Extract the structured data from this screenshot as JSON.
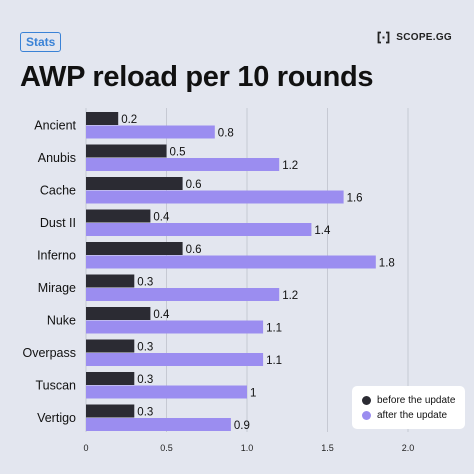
{
  "header": {
    "badge": "Stats",
    "brand": "SCOPE.GG",
    "brand_icon": "scope-logo-icon"
  },
  "chart_data": {
    "type": "bar",
    "orientation": "horizontal",
    "title": "AWP reload per 10 rounds",
    "categories": [
      "Ancient",
      "Anubis",
      "Cache",
      "Dust II",
      "Inferno",
      "Mirage",
      "Nuke",
      "Overpass",
      "Tuscan",
      "Vertigo"
    ],
    "series": [
      {
        "name": "before the update",
        "color": "#2b2b33",
        "values": [
          0.2,
          0.5,
          0.6,
          0.4,
          0.6,
          0.3,
          0.4,
          0.3,
          0.3,
          0.3
        ]
      },
      {
        "name": "after the update",
        "color": "#9b8df0",
        "values": [
          0.8,
          1.2,
          1.6,
          1.4,
          1.8,
          1.2,
          1.1,
          1.1,
          1,
          0.9
        ]
      }
    ],
    "value_labels": [
      [
        "0.2",
        "0.5",
        "0.6",
        "0.4",
        "0.6",
        "0.3",
        "0.4",
        "0.3",
        "0.3",
        "0.3"
      ],
      [
        "0.8",
        "1.2",
        "1.6",
        "1.4",
        "1.8",
        "1.2",
        "1.1",
        "1.1",
        "1",
        "0.9"
      ]
    ],
    "xticks": [
      "0",
      "0.5",
      "1.0",
      "1.5",
      "2.0"
    ],
    "xlim": [
      0,
      2.0
    ],
    "grid": true,
    "legend_position": "bottom-right"
  }
}
